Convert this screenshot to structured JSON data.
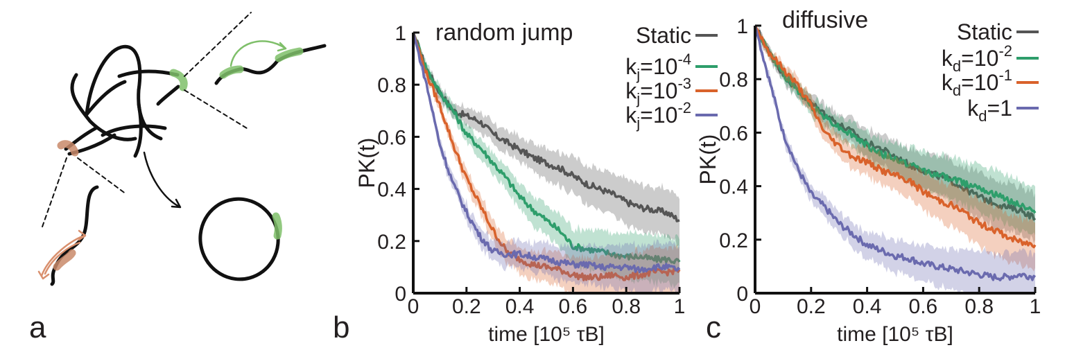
{
  "panels": {
    "a": {
      "label": "a"
    },
    "b": {
      "label": "b"
    },
    "c": {
      "label": "c"
    }
  },
  "colors": {
    "static": "#555555",
    "green": "#2e9e6b",
    "orange": "#d9622b",
    "purple": "#6a6aae",
    "knot": "#111111",
    "highlight_green": "#7fbf6a",
    "highlight_orange": "#c98a6a"
  },
  "chart_data": [
    {
      "type": "line",
      "title": "random jump",
      "xlabel": "time [10⁵ τB]",
      "ylabel": "PK(t)",
      "xlim": [
        0,
        1
      ],
      "ylim": [
        0,
        1
      ],
      "xticks": [
        0,
        0.2,
        0.4,
        0.6,
        0.8,
        1
      ],
      "xtick_labels": [
        "0",
        "0.2",
        "0.4",
        "0.6",
        "0.8",
        "1"
      ],
      "yticks": [
        0,
        0.2,
        0.4,
        0.6,
        0.8,
        1
      ],
      "ytick_labels": [
        "0",
        "0.2",
        "0.4",
        "0.6",
        "0.8",
        "1"
      ],
      "legend": "top-right",
      "x": [
        0,
        0.05,
        0.1,
        0.15,
        0.2,
        0.25,
        0.3,
        0.35,
        0.4,
        0.45,
        0.5,
        0.55,
        0.6,
        0.65,
        0.7,
        0.75,
        0.8,
        0.85,
        0.9,
        0.95,
        1.0
      ],
      "series": [
        {
          "name": "Static",
          "label": "Static",
          "color_key": "static",
          "values": [
            1.0,
            0.86,
            0.77,
            0.7,
            0.68,
            0.66,
            0.61,
            0.58,
            0.55,
            0.52,
            0.5,
            0.48,
            0.45,
            0.42,
            0.4,
            0.38,
            0.35,
            0.33,
            0.32,
            0.31,
            0.28
          ]
        },
        {
          "name": "kj=10^-4",
          "label": "k",
          "sub": "j",
          "mid": "=10",
          "sup": "-4",
          "color_key": "green",
          "values": [
            1.0,
            0.86,
            0.77,
            0.7,
            0.61,
            0.56,
            0.5,
            0.44,
            0.37,
            0.32,
            0.28,
            0.24,
            0.18,
            0.17,
            0.16,
            0.15,
            0.14,
            0.14,
            0.13,
            0.13,
            0.12
          ]
        },
        {
          "name": "kj=10^-3",
          "label": "k",
          "sub": "j",
          "mid": "=10",
          "sup": "-3",
          "color_key": "orange",
          "values": [
            1.0,
            0.84,
            0.72,
            0.57,
            0.44,
            0.34,
            0.24,
            0.16,
            0.13,
            0.11,
            0.1,
            0.09,
            0.07,
            0.06,
            0.06,
            0.07,
            0.06,
            0.07,
            0.08,
            0.08,
            0.09
          ]
        },
        {
          "name": "kj=10^-2",
          "label": "k",
          "sub": "j",
          "mid": "=10",
          "sup": "-2",
          "color_key": "purple",
          "values": [
            1.0,
            0.8,
            0.57,
            0.42,
            0.31,
            0.22,
            0.16,
            0.15,
            0.15,
            0.14,
            0.13,
            0.12,
            0.11,
            0.11,
            0.1,
            0.1,
            0.1,
            0.09,
            0.1,
            0.1,
            0.09
          ]
        }
      ]
    },
    {
      "type": "line",
      "title": "diffusive",
      "xlabel": "time [10⁵ τB]",
      "ylabel": "PK(t)",
      "xlim": [
        0,
        1
      ],
      "ylim": [
        0,
        1
      ],
      "xticks": [
        0,
        0.2,
        0.4,
        0.6,
        0.8,
        1
      ],
      "xtick_labels": [
        "0",
        "0.2",
        "0.4",
        "0.6",
        "0.8",
        "1"
      ],
      "yticks": [
        0,
        0.2,
        0.4,
        0.6,
        0.8,
        1
      ],
      "ytick_labels": [
        "0",
        "0.2",
        "0.4",
        "0.6",
        "0.8",
        "1"
      ],
      "legend": "top-right",
      "x": [
        0,
        0.05,
        0.1,
        0.15,
        0.2,
        0.25,
        0.3,
        0.35,
        0.4,
        0.45,
        0.5,
        0.55,
        0.6,
        0.65,
        0.7,
        0.75,
        0.8,
        0.85,
        0.9,
        0.95,
        1.0
      ],
      "series": [
        {
          "name": "Static",
          "label": "Static",
          "color_key": "static",
          "values": [
            1.0,
            0.9,
            0.82,
            0.76,
            0.71,
            0.67,
            0.63,
            0.6,
            0.56,
            0.54,
            0.51,
            0.48,
            0.46,
            0.44,
            0.42,
            0.39,
            0.36,
            0.34,
            0.32,
            0.31,
            0.28
          ]
        },
        {
          "name": "kd=10^-2",
          "label": "k",
          "sub": "d",
          "mid": "=10",
          "sup": "-2",
          "color_key": "green",
          "values": [
            1.0,
            0.9,
            0.82,
            0.76,
            0.7,
            0.66,
            0.62,
            0.59,
            0.55,
            0.52,
            0.5,
            0.48,
            0.46,
            0.44,
            0.43,
            0.41,
            0.4,
            0.37,
            0.35,
            0.33,
            0.3
          ]
        },
        {
          "name": "kd=10^-1",
          "label": "k",
          "sub": "d",
          "mid": "=10",
          "sup": "-1",
          "color_key": "orange",
          "values": [
            1.0,
            0.9,
            0.84,
            0.78,
            0.7,
            0.6,
            0.55,
            0.51,
            0.49,
            0.46,
            0.44,
            0.42,
            0.38,
            0.35,
            0.33,
            0.3,
            0.26,
            0.24,
            0.21,
            0.19,
            0.18
          ]
        },
        {
          "name": "kd=1",
          "label": "k",
          "sub": "d",
          "mid": "=1",
          "sup": "",
          "color_key": "purple",
          "values": [
            1.0,
            0.8,
            0.6,
            0.47,
            0.37,
            0.32,
            0.26,
            0.22,
            0.18,
            0.16,
            0.14,
            0.13,
            0.11,
            0.1,
            0.09,
            0.08,
            0.07,
            0.06,
            0.06,
            0.07,
            0.06
          ]
        }
      ]
    }
  ]
}
